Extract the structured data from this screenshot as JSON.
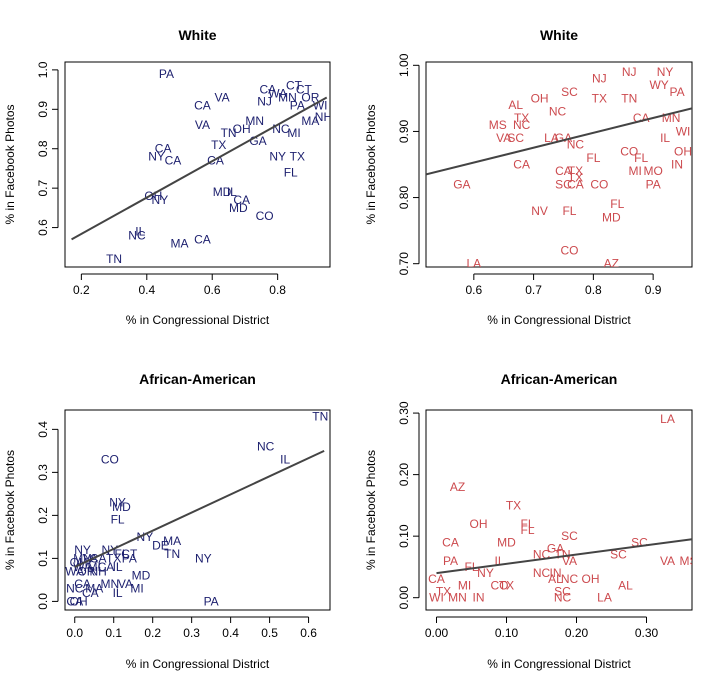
{
  "colors": {
    "navy": "#1c1f6e",
    "red": "#cc4a4e",
    "fit": "#444444"
  },
  "chart_data": [
    {
      "type": "scatter",
      "title": "White",
      "xlabel": "% in Congressional District",
      "ylabel": "% in Facebook Photos",
      "color": "navy",
      "xlim": [
        0.15,
        0.96
      ],
      "ylim": [
        0.5,
        1.02
      ],
      "xticks": [
        0.2,
        0.4,
        0.6,
        0.8
      ],
      "xtick_labels": [
        "0.2",
        "0.4",
        "0.6",
        "0.8"
      ],
      "yticks": [
        0.6,
        0.7,
        0.8,
        0.9,
        1.0
      ],
      "ytick_labels": [
        "0.6",
        "0.7",
        "0.8",
        "0.9",
        "1.0"
      ],
      "fit": [
        [
          0.17,
          0.57
        ],
        [
          0.95,
          0.93
        ]
      ],
      "points": [
        {
          "label": "PA",
          "x": 0.46,
          "y": 0.99
        },
        {
          "label": "CT",
          "x": 0.85,
          "y": 0.96
        },
        {
          "label": "CA",
          "x": 0.77,
          "y": 0.95
        },
        {
          "label": "CT",
          "x": 0.88,
          "y": 0.95
        },
        {
          "label": "VA",
          "x": 0.63,
          "y": 0.93
        },
        {
          "label": "WA",
          "x": 0.8,
          "y": 0.94
        },
        {
          "label": "OR",
          "x": 0.9,
          "y": 0.93
        },
        {
          "label": "CA",
          "x": 0.57,
          "y": 0.91
        },
        {
          "label": "MN",
          "x": 0.83,
          "y": 0.93
        },
        {
          "label": "NJ",
          "x": 0.76,
          "y": 0.92
        },
        {
          "label": "PA",
          "x": 0.86,
          "y": 0.91
        },
        {
          "label": "WI",
          "x": 0.93,
          "y": 0.91
        },
        {
          "label": "NH",
          "x": 0.94,
          "y": 0.88
        },
        {
          "label": "VA",
          "x": 0.57,
          "y": 0.86
        },
        {
          "label": "MN",
          "x": 0.73,
          "y": 0.87
        },
        {
          "label": "MA",
          "x": 0.9,
          "y": 0.87
        },
        {
          "label": "OH",
          "x": 0.69,
          "y": 0.85
        },
        {
          "label": "TN",
          "x": 0.65,
          "y": 0.84
        },
        {
          "label": "NC",
          "x": 0.81,
          "y": 0.85
        },
        {
          "label": "MI",
          "x": 0.85,
          "y": 0.84
        },
        {
          "label": "CA",
          "x": 0.45,
          "y": 0.8
        },
        {
          "label": "NY",
          "x": 0.43,
          "y": 0.78
        },
        {
          "label": "CA",
          "x": 0.48,
          "y": 0.77
        },
        {
          "label": "TX",
          "x": 0.62,
          "y": 0.81
        },
        {
          "label": "GA",
          "x": 0.74,
          "y": 0.82
        },
        {
          "label": "NY",
          "x": 0.8,
          "y": 0.78
        },
        {
          "label": "CA",
          "x": 0.61,
          "y": 0.77
        },
        {
          "label": "FL",
          "x": 0.84,
          "y": 0.74
        },
        {
          "label": "TX",
          "x": 0.86,
          "y": 0.78
        },
        {
          "label": "MD",
          "x": 0.63,
          "y": 0.69
        },
        {
          "label": "IL",
          "x": 0.66,
          "y": 0.69
        },
        {
          "label": "CA",
          "x": 0.69,
          "y": 0.67
        },
        {
          "label": "MD",
          "x": 0.68,
          "y": 0.65
        },
        {
          "label": "OH",
          "x": 0.42,
          "y": 0.68
        },
        {
          "label": "NY",
          "x": 0.44,
          "y": 0.67
        },
        {
          "label": "CO",
          "x": 0.76,
          "y": 0.63
        },
        {
          "label": "IL",
          "x": 0.38,
          "y": 0.59
        },
        {
          "label": "NC",
          "x": 0.37,
          "y": 0.58
        },
        {
          "label": "CA",
          "x": 0.57,
          "y": 0.57
        },
        {
          "label": "MA",
          "x": 0.5,
          "y": 0.56
        },
        {
          "label": "TN",
          "x": 0.3,
          "y": 0.52
        }
      ]
    },
    {
      "type": "scatter",
      "title": "White",
      "xlabel": "% in Congressional District",
      "ylabel": "% in Facebook Photos",
      "color": "red",
      "xlim": [
        0.52,
        0.965
      ],
      "ylim": [
        0.695,
        1.005
      ],
      "xticks": [
        0.6,
        0.7,
        0.8,
        0.9
      ],
      "xtick_labels": [
        "0.6",
        "0.7",
        "0.8",
        "0.9"
      ],
      "yticks": [
        0.7,
        0.8,
        0.9,
        1.0
      ],
      "ytick_labels": [
        "0.70",
        "0.80",
        "0.90",
        "1.00"
      ],
      "fit": [
        [
          0.52,
          0.835
        ],
        [
          0.965,
          0.935
        ]
      ],
      "points": [
        {
          "label": "NJ",
          "x": 0.86,
          "y": 0.99
        },
        {
          "label": "NY",
          "x": 0.92,
          "y": 0.99
        },
        {
          "label": "NJ",
          "x": 0.81,
          "y": 0.98
        },
        {
          "label": "WY",
          "x": 0.91,
          "y": 0.97
        },
        {
          "label": "SC",
          "x": 0.76,
          "y": 0.96
        },
        {
          "label": "PA",
          "x": 0.94,
          "y": 0.96
        },
        {
          "label": "OH",
          "x": 0.71,
          "y": 0.95
        },
        {
          "label": "TX",
          "x": 0.81,
          "y": 0.95
        },
        {
          "label": "TN",
          "x": 0.86,
          "y": 0.95
        },
        {
          "label": "AL",
          "x": 0.67,
          "y": 0.94
        },
        {
          "label": "NC",
          "x": 0.74,
          "y": 0.93
        },
        {
          "label": "TX",
          "x": 0.68,
          "y": 0.92
        },
        {
          "label": "MS",
          "x": 0.64,
          "y": 0.91
        },
        {
          "label": "NC",
          "x": 0.68,
          "y": 0.91
        },
        {
          "label": "CA",
          "x": 0.88,
          "y": 0.92
        },
        {
          "label": "MN",
          "x": 0.93,
          "y": 0.92
        },
        {
          "label": "VA",
          "x": 0.65,
          "y": 0.89
        },
        {
          "label": "SC",
          "x": 0.67,
          "y": 0.89
        },
        {
          "label": "LA",
          "x": 0.73,
          "y": 0.89
        },
        {
          "label": "GA",
          "x": 0.75,
          "y": 0.89
        },
        {
          "label": "NC",
          "x": 0.77,
          "y": 0.88
        },
        {
          "label": "IL",
          "x": 0.92,
          "y": 0.89
        },
        {
          "label": "WI",
          "x": 0.95,
          "y": 0.9
        },
        {
          "label": "FL",
          "x": 0.8,
          "y": 0.86
        },
        {
          "label": "CO",
          "x": 0.86,
          "y": 0.87
        },
        {
          "label": "FL",
          "x": 0.88,
          "y": 0.86
        },
        {
          "label": "OH",
          "x": 0.95,
          "y": 0.87
        },
        {
          "label": "CA",
          "x": 0.68,
          "y": 0.85
        },
        {
          "label": "CA",
          "x": 0.75,
          "y": 0.84
        },
        {
          "label": "TX",
          "x": 0.77,
          "y": 0.84
        },
        {
          "label": "MI",
          "x": 0.87,
          "y": 0.84
        },
        {
          "label": "MO",
          "x": 0.9,
          "y": 0.84
        },
        {
          "label": "IN",
          "x": 0.94,
          "y": 0.85
        },
        {
          "label": "TX",
          "x": 0.77,
          "y": 0.83
        },
        {
          "label": "SC",
          "x": 0.75,
          "y": 0.82
        },
        {
          "label": "CA",
          "x": 0.77,
          "y": 0.82
        },
        {
          "label": "CO",
          "x": 0.81,
          "y": 0.82
        },
        {
          "label": "PA",
          "x": 0.9,
          "y": 0.82
        },
        {
          "label": "GA",
          "x": 0.58,
          "y": 0.82
        },
        {
          "label": "FL",
          "x": 0.84,
          "y": 0.79
        },
        {
          "label": "NV",
          "x": 0.71,
          "y": 0.78
        },
        {
          "label": "FL",
          "x": 0.76,
          "y": 0.78
        },
        {
          "label": "MD",
          "x": 0.83,
          "y": 0.77
        },
        {
          "label": "CO",
          "x": 0.76,
          "y": 0.72
        },
        {
          "label": "LA",
          "x": 0.6,
          "y": 0.7
        },
        {
          "label": "AZ",
          "x": 0.83,
          "y": 0.7
        }
      ]
    },
    {
      "type": "scatter",
      "title": "African-American",
      "xlabel": "% in Congressional District",
      "ylabel": "% in Facebook Photos",
      "color": "navy",
      "xlim": [
        -0.025,
        0.655
      ],
      "ylim": [
        -0.02,
        0.445
      ],
      "xticks": [
        0.0,
        0.1,
        0.2,
        0.3,
        0.4,
        0.5,
        0.6
      ],
      "xtick_labels": [
        "0.0",
        "0.1",
        "0.2",
        "0.3",
        "0.4",
        "0.5",
        "0.6"
      ],
      "yticks": [
        0.0,
        0.1,
        0.2,
        0.3,
        0.4
      ],
      "ytick_labels": [
        "0.0",
        "0.1",
        "0.2",
        "0.3",
        "0.4"
      ],
      "fit": [
        [
          0.0,
          0.08
        ],
        [
          0.64,
          0.35
        ]
      ],
      "points": [
        {
          "label": "TN",
          "x": 0.63,
          "y": 0.43
        },
        {
          "label": "NC",
          "x": 0.49,
          "y": 0.36
        },
        {
          "label": "IL",
          "x": 0.54,
          "y": 0.33
        },
        {
          "label": "CO",
          "x": 0.09,
          "y": 0.33
        },
        {
          "label": "NY",
          "x": 0.11,
          "y": 0.23
        },
        {
          "label": "MD",
          "x": 0.12,
          "y": 0.22
        },
        {
          "label": "FL",
          "x": 0.11,
          "y": 0.19
        },
        {
          "label": "NY",
          "x": 0.18,
          "y": 0.15
        },
        {
          "label": "DE",
          "x": 0.22,
          "y": 0.13
        },
        {
          "label": "MA",
          "x": 0.25,
          "y": 0.14
        },
        {
          "label": "TN",
          "x": 0.25,
          "y": 0.11
        },
        {
          "label": "NY",
          "x": 0.33,
          "y": 0.1
        },
        {
          "label": "NY",
          "x": 0.02,
          "y": 0.12
        },
        {
          "label": "NY",
          "x": 0.09,
          "y": 0.12
        },
        {
          "label": "FL",
          "x": 0.12,
          "y": 0.11
        },
        {
          "label": "CT",
          "x": 0.14,
          "y": 0.11
        },
        {
          "label": "MN",
          "x": 0.02,
          "y": 0.1
        },
        {
          "label": "VA",
          "x": 0.04,
          "y": 0.1
        },
        {
          "label": "CA",
          "x": 0.06,
          "y": 0.1
        },
        {
          "label": "TX",
          "x": 0.1,
          "y": 0.1
        },
        {
          "label": "PA",
          "x": 0.14,
          "y": 0.1
        },
        {
          "label": "OH",
          "x": 0.01,
          "y": 0.09
        },
        {
          "label": "WA",
          "x": 0.02,
          "y": 0.08
        },
        {
          "label": "MI",
          "x": 0.05,
          "y": 0.08
        },
        {
          "label": "CA",
          "x": 0.08,
          "y": 0.08
        },
        {
          "label": "IL",
          "x": 0.11,
          "y": 0.08
        },
        {
          "label": "WA",
          "x": 0.0,
          "y": 0.07
        },
        {
          "label": "OR",
          "x": 0.03,
          "y": 0.07
        },
        {
          "label": "NH",
          "x": 0.06,
          "y": 0.07
        },
        {
          "label": "MD",
          "x": 0.17,
          "y": 0.06
        },
        {
          "label": "CA",
          "x": 0.02,
          "y": 0.04
        },
        {
          "label": "MN",
          "x": 0.09,
          "y": 0.04
        },
        {
          "label": "VA",
          "x": 0.13,
          "y": 0.04
        },
        {
          "label": "MI",
          "x": 0.16,
          "y": 0.03
        },
        {
          "label": "NC",
          "x": 0.0,
          "y": 0.03
        },
        {
          "label": "MA",
          "x": 0.05,
          "y": 0.03
        },
        {
          "label": "CA",
          "x": 0.04,
          "y": 0.02
        },
        {
          "label": "IL",
          "x": 0.11,
          "y": 0.02
        },
        {
          "label": "CA",
          "x": 0.0,
          "y": 0.0
        },
        {
          "label": "OH",
          "x": 0.01,
          "y": 0.0
        },
        {
          "label": "PA",
          "x": 0.35,
          "y": 0.0
        }
      ]
    },
    {
      "type": "scatter",
      "title": "African-American",
      "xlabel": "% in Congressional District",
      "ylabel": "% in Facebook Photos",
      "color": "red",
      "xlim": [
        -0.015,
        0.365
      ],
      "ylim": [
        -0.02,
        0.305
      ],
      "xticks": [
        0.0,
        0.1,
        0.2,
        0.3
      ],
      "xtick_labels": [
        "0.00",
        "0.10",
        "0.20",
        "0.30"
      ],
      "yticks": [
        0.0,
        0.1,
        0.2,
        0.3
      ],
      "ytick_labels": [
        "0.00",
        "0.10",
        "0.20",
        "0.30"
      ],
      "fit": [
        [
          0.0,
          0.04
        ],
        [
          0.365,
          0.095
        ]
      ],
      "points": [
        {
          "label": "LA",
          "x": 0.33,
          "y": 0.29
        },
        {
          "label": "AZ",
          "x": 0.03,
          "y": 0.18
        },
        {
          "label": "TX",
          "x": 0.11,
          "y": 0.15
        },
        {
          "label": "OH",
          "x": 0.06,
          "y": 0.12
        },
        {
          "label": "FL",
          "x": 0.13,
          "y": 0.12
        },
        {
          "label": "FL",
          "x": 0.13,
          "y": 0.11
        },
        {
          "label": "SC",
          "x": 0.19,
          "y": 0.1
        },
        {
          "label": "SC",
          "x": 0.29,
          "y": 0.09
        },
        {
          "label": "CA",
          "x": 0.02,
          "y": 0.09
        },
        {
          "label": "MD",
          "x": 0.1,
          "y": 0.09
        },
        {
          "label": "GA",
          "x": 0.17,
          "y": 0.08
        },
        {
          "label": "NC",
          "x": 0.15,
          "y": 0.07
        },
        {
          "label": "TN",
          "x": 0.18,
          "y": 0.07
        },
        {
          "label": "SC",
          "x": 0.26,
          "y": 0.07
        },
        {
          "label": "VA",
          "x": 0.33,
          "y": 0.06
        },
        {
          "label": "MS",
          "x": 0.36,
          "y": 0.06
        },
        {
          "label": "IL",
          "x": 0.09,
          "y": 0.06
        },
        {
          "label": "VA",
          "x": 0.19,
          "y": 0.06
        },
        {
          "label": "NC",
          "x": 0.15,
          "y": 0.04
        },
        {
          "label": "IN",
          "x": 0.17,
          "y": 0.04
        },
        {
          "label": "AL",
          "x": 0.17,
          "y": 0.03
        },
        {
          "label": "NC",
          "x": 0.19,
          "y": 0.03
        },
        {
          "label": "OH",
          "x": 0.22,
          "y": 0.03
        },
        {
          "label": "AL",
          "x": 0.27,
          "y": 0.02
        },
        {
          "label": "TX",
          "x": 0.1,
          "y": 0.02
        },
        {
          "label": "SC",
          "x": 0.18,
          "y": 0.01
        },
        {
          "label": "NC",
          "x": 0.18,
          "y": 0.0
        },
        {
          "label": "LA",
          "x": 0.24,
          "y": 0.0
        },
        {
          "label": "CA",
          "x": 0.0,
          "y": 0.03
        },
        {
          "label": "PA",
          "x": 0.02,
          "y": 0.06
        },
        {
          "label": "FL",
          "x": 0.05,
          "y": 0.05
        },
        {
          "label": "NY",
          "x": 0.07,
          "y": 0.04
        },
        {
          "label": "CO",
          "x": 0.09,
          "y": 0.02
        },
        {
          "label": "TX",
          "x": 0.01,
          "y": 0.01
        },
        {
          "label": "MN",
          "x": 0.03,
          "y": 0.0
        },
        {
          "label": "IN",
          "x": 0.06,
          "y": 0.0
        },
        {
          "label": "MI",
          "x": 0.04,
          "y": 0.02
        },
        {
          "label": "WI",
          "x": 0.0,
          "y": 0.0
        }
      ]
    }
  ]
}
